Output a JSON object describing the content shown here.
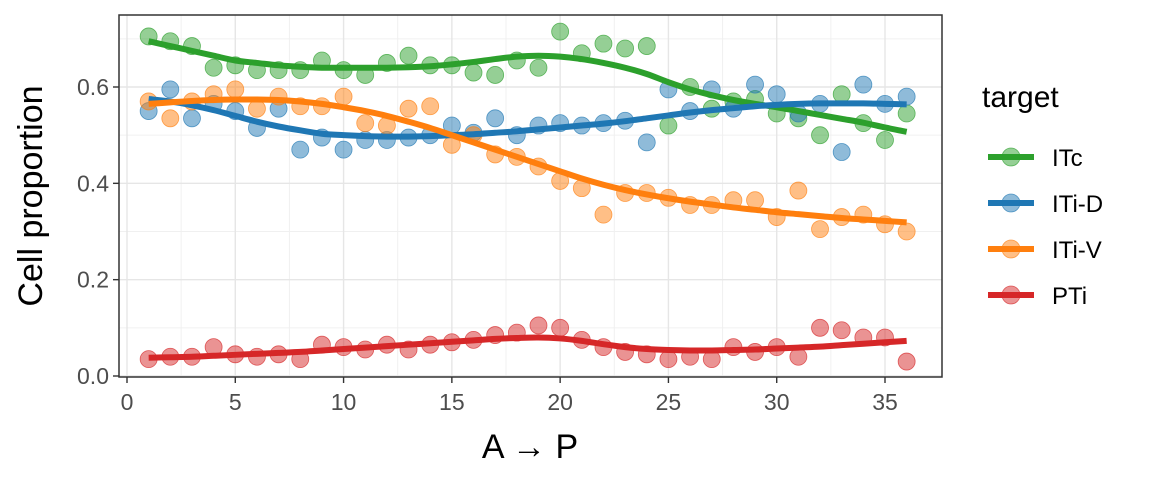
{
  "chart_data": {
    "type": "scatter",
    "title": "",
    "xlabel": "A → P",
    "ylabel": "Cell proportion",
    "xlim": [
      0,
      37.5
    ],
    "ylim": [
      0,
      0.75
    ],
    "xticks": [
      0,
      5,
      10,
      15,
      20,
      25,
      30,
      35
    ],
    "yticks": [
      0.0,
      0.2,
      0.4,
      0.6
    ],
    "xtick_labels": [
      "0",
      "5",
      "10",
      "15",
      "20",
      "25",
      "30",
      "35"
    ],
    "ytick_labels": [
      "0.0",
      "0.2",
      "0.4",
      "0.6"
    ],
    "grid": true,
    "legend": {
      "title": "target",
      "placement": "right"
    },
    "x": [
      1,
      2,
      3,
      4,
      5,
      6,
      7,
      8,
      9,
      10,
      11,
      12,
      13,
      14,
      15,
      16,
      17,
      18,
      19,
      20,
      21,
      22,
      23,
      24,
      25,
      26,
      27,
      28,
      29,
      30,
      31,
      32,
      33,
      34,
      35,
      36
    ],
    "series": [
      {
        "name": "ITc",
        "color": "#2ca02c",
        "points": [
          0.705,
          0.695,
          0.685,
          0.64,
          0.645,
          0.635,
          0.635,
          0.635,
          0.655,
          0.635,
          0.625,
          0.65,
          0.665,
          0.645,
          0.645,
          0.63,
          0.625,
          0.655,
          0.64,
          0.715,
          0.67,
          0.69,
          0.68,
          0.685,
          0.52,
          0.6,
          0.555,
          0.57,
          0.575,
          0.545,
          0.535,
          0.5,
          0.585,
          0.525,
          0.49,
          0.545
        ],
        "trend": [
          0.695,
          0.685,
          0.675,
          0.665,
          0.655,
          0.65,
          0.645,
          0.642,
          0.64,
          0.64,
          0.64,
          0.64,
          0.641,
          0.643,
          0.647,
          0.652,
          0.658,
          0.663,
          0.665,
          0.663,
          0.658,
          0.65,
          0.64,
          0.627,
          0.61,
          0.595,
          0.583,
          0.573,
          0.565,
          0.558,
          0.55,
          0.542,
          0.534,
          0.526,
          0.516,
          0.507
        ]
      },
      {
        "name": "ITi-D",
        "color": "#1f77b4",
        "points": [
          0.55,
          0.595,
          0.535,
          0.565,
          0.55,
          0.515,
          0.555,
          0.47,
          0.495,
          0.47,
          0.49,
          0.49,
          0.495,
          0.5,
          0.52,
          0.505,
          0.535,
          0.5,
          0.52,
          0.525,
          0.52,
          0.525,
          0.53,
          0.485,
          0.595,
          0.55,
          0.595,
          0.555,
          0.605,
          0.585,
          0.545,
          0.565,
          0.465,
          0.605,
          0.565,
          0.58
        ],
        "trend": [
          0.575,
          0.57,
          0.562,
          0.552,
          0.54,
          0.528,
          0.518,
          0.51,
          0.503,
          0.5,
          0.498,
          0.497,
          0.497,
          0.498,
          0.5,
          0.502,
          0.505,
          0.508,
          0.512,
          0.516,
          0.52,
          0.524,
          0.529,
          0.535,
          0.541,
          0.547,
          0.552,
          0.556,
          0.56,
          0.563,
          0.565,
          0.566,
          0.566,
          0.566,
          0.565,
          0.564
        ]
      },
      {
        "name": "ITi-V",
        "color": "#ff7f0e",
        "points": [
          0.57,
          0.535,
          0.57,
          0.585,
          0.595,
          0.555,
          0.58,
          0.56,
          0.56,
          0.58,
          0.525,
          0.52,
          0.555,
          0.56,
          0.48,
          0.5,
          0.46,
          0.455,
          0.435,
          0.405,
          0.39,
          0.335,
          0.38,
          0.38,
          0.37,
          0.355,
          0.355,
          0.365,
          0.365,
          0.33,
          0.385,
          0.305,
          0.33,
          0.335,
          0.315,
          0.3
        ],
        "trend": [
          0.565,
          0.568,
          0.571,
          0.573,
          0.574,
          0.574,
          0.573,
          0.57,
          0.565,
          0.558,
          0.55,
          0.54,
          0.528,
          0.515,
          0.5,
          0.485,
          0.47,
          0.455,
          0.44,
          0.425,
          0.41,
          0.397,
          0.386,
          0.377,
          0.369,
          0.362,
          0.356,
          0.35,
          0.345,
          0.34,
          0.336,
          0.332,
          0.328,
          0.325,
          0.322,
          0.319
        ]
      },
      {
        "name": "PTi",
        "color": "#d62728",
        "points": [
          0.035,
          0.04,
          0.04,
          0.06,
          0.045,
          0.04,
          0.045,
          0.035,
          0.065,
          0.06,
          0.055,
          0.065,
          0.055,
          0.065,
          0.07,
          0.075,
          0.085,
          0.09,
          0.105,
          0.1,
          0.075,
          0.06,
          0.05,
          0.045,
          0.035,
          0.04,
          0.035,
          0.06,
          0.05,
          0.06,
          0.04,
          0.1,
          0.095,
          0.08,
          0.08,
          0.03
        ],
        "trend": [
          0.038,
          0.039,
          0.04,
          0.042,
          0.044,
          0.046,
          0.048,
          0.05,
          0.053,
          0.056,
          0.059,
          0.062,
          0.065,
          0.068,
          0.071,
          0.074,
          0.077,
          0.079,
          0.08,
          0.078,
          0.073,
          0.066,
          0.06,
          0.056,
          0.054,
          0.053,
          0.053,
          0.054,
          0.055,
          0.057,
          0.059,
          0.061,
          0.064,
          0.067,
          0.07,
          0.073
        ]
      }
    ]
  }
}
